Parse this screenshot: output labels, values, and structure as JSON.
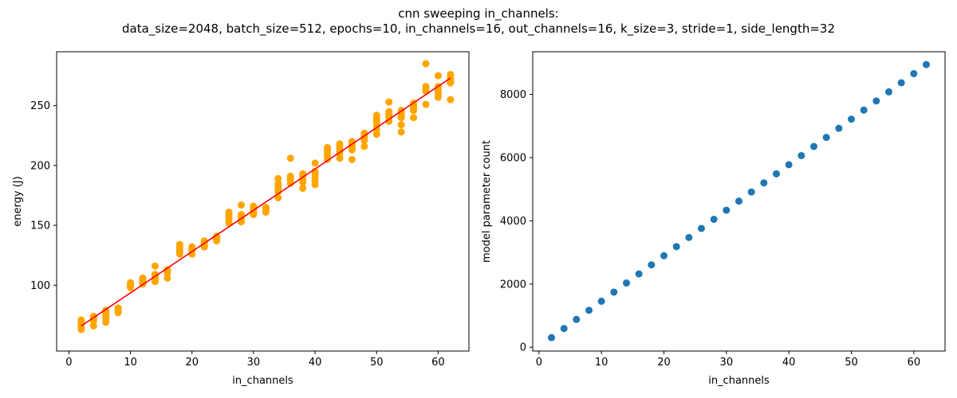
{
  "figure": {
    "title_line1": "cnn sweeping in_channels:",
    "title_line2": "data_size=2048, batch_size=512, epochs=10, in_channels=16, out_channels=16, k_size=3, stride=1, side_length=32"
  },
  "chart_data": [
    {
      "type": "scatter",
      "xlabel": "in_channels",
      "ylabel": "energy (J)",
      "xlim": [
        -2,
        65
      ],
      "ylim": [
        45,
        295
      ],
      "xticks": [
        0,
        10,
        20,
        30,
        40,
        50,
        60
      ],
      "yticks": [
        100,
        150,
        200,
        250
      ],
      "grid": false,
      "point_color": "#ffa500",
      "fit_line": {
        "color": "#ff0000",
        "x": [
          2,
          62
        ],
        "y": [
          66,
          273
        ]
      },
      "points": [
        [
          2,
          63
        ],
        [
          2,
          65
        ],
        [
          2,
          67
        ],
        [
          2,
          69
        ],
        [
          2,
          70
        ],
        [
          2,
          71
        ],
        [
          4,
          66
        ],
        [
          4,
          70
        ],
        [
          4,
          72
        ],
        [
          4,
          73
        ],
        [
          4,
          74
        ],
        [
          6,
          69
        ],
        [
          6,
          71
        ],
        [
          6,
          73
        ],
        [
          6,
          75
        ],
        [
          6,
          77
        ],
        [
          6,
          79
        ],
        [
          8,
          77
        ],
        [
          8,
          78
        ],
        [
          8,
          79
        ],
        [
          8,
          80
        ],
        [
          8,
          81
        ],
        [
          10,
          98
        ],
        [
          10,
          99
        ],
        [
          10,
          100
        ],
        [
          10,
          101
        ],
        [
          10,
          102
        ],
        [
          12,
          101
        ],
        [
          12,
          102
        ],
        [
          12,
          103
        ],
        [
          12,
          104
        ],
        [
          12,
          105
        ],
        [
          12,
          106
        ],
        [
          14,
          103
        ],
        [
          14,
          104
        ],
        [
          14,
          106
        ],
        [
          14,
          108
        ],
        [
          14,
          109
        ],
        [
          14,
          116
        ],
        [
          16,
          106
        ],
        [
          16,
          110
        ],
        [
          16,
          111
        ],
        [
          16,
          112
        ],
        [
          16,
          113
        ],
        [
          18,
          126
        ],
        [
          18,
          128
        ],
        [
          18,
          130
        ],
        [
          18,
          132
        ],
        [
          18,
          134
        ],
        [
          20,
          126
        ],
        [
          20,
          129
        ],
        [
          20,
          130
        ],
        [
          20,
          131
        ],
        [
          20,
          132
        ],
        [
          22,
          132
        ],
        [
          22,
          134
        ],
        [
          22,
          135
        ],
        [
          22,
          136
        ],
        [
          22,
          137
        ],
        [
          24,
          137
        ],
        [
          24,
          138
        ],
        [
          24,
          139
        ],
        [
          24,
          140
        ],
        [
          24,
          141
        ],
        [
          26,
          152
        ],
        [
          26,
          155
        ],
        [
          26,
          157
        ],
        [
          26,
          159
        ],
        [
          26,
          161
        ],
        [
          28,
          153
        ],
        [
          28,
          155
        ],
        [
          28,
          157
        ],
        [
          28,
          159
        ],
        [
          28,
          167
        ],
        [
          30,
          159
        ],
        [
          30,
          161
        ],
        [
          30,
          163
        ],
        [
          30,
          165
        ],
        [
          30,
          166
        ],
        [
          32,
          161
        ],
        [
          32,
          163
        ],
        [
          32,
          164
        ],
        [
          32,
          165
        ],
        [
          34,
          173
        ],
        [
          34,
          178
        ],
        [
          34,
          181
        ],
        [
          34,
          183
        ],
        [
          34,
          185
        ],
        [
          34,
          189
        ],
        [
          36,
          185
        ],
        [
          36,
          188
        ],
        [
          36,
          190
        ],
        [
          36,
          191
        ],
        [
          36,
          206
        ],
        [
          38,
          181
        ],
        [
          38,
          186
        ],
        [
          38,
          188
        ],
        [
          38,
          191
        ],
        [
          38,
          193
        ],
        [
          40,
          184
        ],
        [
          40,
          187
        ],
        [
          40,
          190
        ],
        [
          40,
          193
        ],
        [
          40,
          195
        ],
        [
          40,
          202
        ],
        [
          42,
          205
        ],
        [
          42,
          208
        ],
        [
          42,
          210
        ],
        [
          42,
          212
        ],
        [
          42,
          214
        ],
        [
          42,
          215
        ],
        [
          44,
          206
        ],
        [
          44,
          210
        ],
        [
          44,
          212
        ],
        [
          44,
          214
        ],
        [
          44,
          216
        ],
        [
          44,
          218
        ],
        [
          46,
          205
        ],
        [
          46,
          213
        ],
        [
          46,
          215
        ],
        [
          46,
          217
        ],
        [
          46,
          219
        ],
        [
          46,
          220
        ],
        [
          48,
          216
        ],
        [
          48,
          221
        ],
        [
          48,
          223
        ],
        [
          48,
          225
        ],
        [
          48,
          227
        ],
        [
          50,
          226
        ],
        [
          50,
          230
        ],
        [
          50,
          233
        ],
        [
          50,
          236
        ],
        [
          50,
          238
        ],
        [
          50,
          240
        ],
        [
          50,
          242
        ],
        [
          52,
          237
        ],
        [
          52,
          240
        ],
        [
          52,
          242
        ],
        [
          52,
          243
        ],
        [
          52,
          245
        ],
        [
          52,
          253
        ],
        [
          54,
          228
        ],
        [
          54,
          234
        ],
        [
          54,
          240
        ],
        [
          54,
          242
        ],
        [
          54,
          244
        ],
        [
          54,
          246
        ],
        [
          56,
          240
        ],
        [
          56,
          246
        ],
        [
          56,
          248
        ],
        [
          56,
          250
        ],
        [
          56,
          252
        ],
        [
          58,
          251
        ],
        [
          58,
          262
        ],
        [
          58,
          264
        ],
        [
          58,
          266
        ],
        [
          58,
          285
        ],
        [
          60,
          257
        ],
        [
          60,
          260
        ],
        [
          60,
          262
        ],
        [
          60,
          264
        ],
        [
          60,
          266
        ],
        [
          60,
          275
        ],
        [
          62,
          255
        ],
        [
          62,
          269
        ],
        [
          62,
          271
        ],
        [
          62,
          273
        ],
        [
          62,
          276
        ]
      ]
    },
    {
      "type": "scatter",
      "xlabel": "in_channels",
      "ylabel": "model parameter count",
      "xlim": [
        -1,
        65
      ],
      "ylim": [
        -120,
        9350
      ],
      "xticks": [
        0,
        10,
        20,
        30,
        40,
        50,
        60
      ],
      "yticks": [
        0,
        2000,
        4000,
        6000,
        8000
      ],
      "grid": false,
      "point_color": "#1f77b4",
      "x": [
        2,
        4,
        6,
        8,
        10,
        12,
        14,
        16,
        18,
        20,
        22,
        24,
        26,
        28,
        30,
        32,
        34,
        36,
        38,
        40,
        42,
        44,
        46,
        48,
        50,
        52,
        54,
        56,
        58,
        60,
        62
      ],
      "y": [
        304,
        592,
        880,
        1168,
        1456,
        1744,
        2032,
        2320,
        2608,
        2896,
        3184,
        3472,
        3760,
        4048,
        4336,
        4624,
        4912,
        5200,
        5488,
        5776,
        6064,
        6352,
        6640,
        6928,
        7216,
        7504,
        7792,
        8080,
        8368,
        8656,
        8944
      ]
    }
  ]
}
